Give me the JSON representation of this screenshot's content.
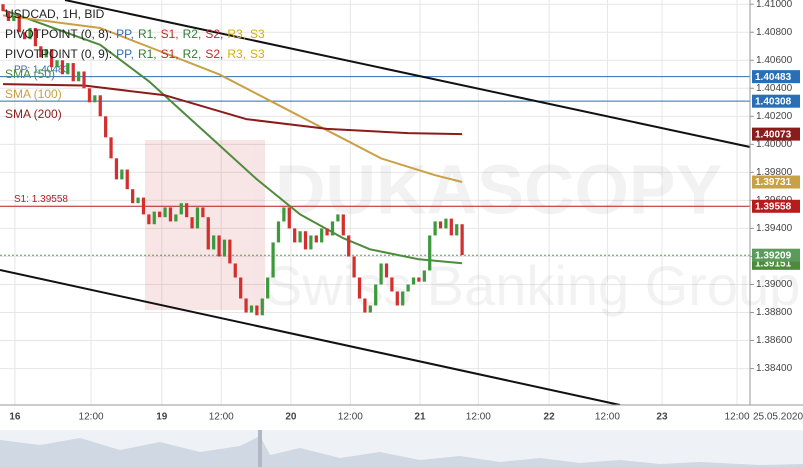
{
  "chart_data": {
    "type": "candlestick",
    "title": "USDCAD, 1H, BID",
    "indicators": [
      {
        "label": "PIVOTPOINT (0, 8):",
        "parts": [
          {
            "text": "PP,",
            "color": "#2a6fb5"
          },
          {
            "text": "R1,",
            "color": "#2e7d32"
          },
          {
            "text": "S1,",
            "color": "#c62828"
          },
          {
            "text": "R2,",
            "color": "#2e7d32"
          },
          {
            "text": "S2,",
            "color": "#c62828"
          },
          {
            "text": "R3,",
            "color": "#d4b000"
          },
          {
            "text": "S3",
            "color": "#d4b000"
          }
        ]
      },
      {
        "label": "PIVOTPOINT (0, 9):",
        "parts": [
          {
            "text": "PP,",
            "color": "#2a6fb5"
          },
          {
            "text": "R1,",
            "color": "#2e7d32"
          },
          {
            "text": "S1,",
            "color": "#c62828"
          },
          {
            "text": "R2,",
            "color": "#2e7d32"
          },
          {
            "text": "S2,",
            "color": "#c62828"
          },
          {
            "text": "R3,",
            "color": "#d4b000"
          },
          {
            "text": "S3",
            "color": "#d4b000"
          }
        ]
      }
    ],
    "watermark": [
      "DUKASCOPY",
      "Swiss Banking Group"
    ],
    "up_color": "#3c9a3c",
    "down_color": "#d32f2f",
    "open": [
      1.41,
      1.4095,
      1.4088,
      1.4092,
      1.408,
      1.4075,
      1.4083,
      1.407,
      1.4062,
      1.4068,
      1.4055,
      1.406,
      1.405,
      1.4058,
      1.4045,
      1.4052,
      1.404,
      1.403,
      1.4035,
      1.402,
      1.4005,
      1.399,
      1.3975,
      1.3982,
      1.3968,
      1.3958,
      1.3962,
      1.395,
      1.3943,
      1.3952,
      1.3948,
      1.3955,
      1.3945,
      1.395,
      1.3958,
      1.3948,
      1.394,
      1.3955,
      1.3948,
      1.3925,
      1.3935,
      1.392,
      1.3932,
      1.3915,
      1.3905,
      1.389,
      1.388,
      1.3885,
      1.3878,
      1.389,
      1.3905,
      1.393,
      1.3945,
      1.3955,
      1.394,
      1.393,
      1.3938,
      1.3925,
      1.3935,
      1.393,
      1.394,
      1.3935,
      1.3945,
      1.395,
      1.3935,
      1.392,
      1.3905,
      1.389,
      1.388,
      1.3885,
      1.39,
      1.3915,
      1.3905,
      1.3895,
      1.3885,
      1.3895,
      1.39,
      1.3905,
      1.3902,
      1.391,
      1.3935,
      1.3945,
      1.394,
      1.3947,
      1.3935,
      1.3943
    ],
    "close": [
      1.4095,
      1.4088,
      1.4092,
      1.408,
      1.4075,
      1.4083,
      1.407,
      1.4062,
      1.4068,
      1.4055,
      1.406,
      1.405,
      1.4058,
      1.4045,
      1.4052,
      1.404,
      1.403,
      1.4035,
      1.402,
      1.4005,
      1.399,
      1.3975,
      1.3982,
      1.3968,
      1.3958,
      1.3962,
      1.395,
      1.3943,
      1.3952,
      1.3948,
      1.3955,
      1.3945,
      1.395,
      1.3958,
      1.3948,
      1.394,
      1.3955,
      1.3948,
      1.3925,
      1.3935,
      1.392,
      1.3932,
      1.3915,
      1.3905,
      1.389,
      1.388,
      1.3885,
      1.3878,
      1.389,
      1.3905,
      1.393,
      1.3945,
      1.3955,
      1.394,
      1.393,
      1.3938,
      1.3925,
      1.3935,
      1.393,
      1.394,
      1.3935,
      1.3945,
      1.395,
      1.3935,
      1.392,
      1.3905,
      1.389,
      1.388,
      1.3885,
      1.39,
      1.3915,
      1.3905,
      1.3895,
      1.3885,
      1.3895,
      1.39,
      1.3905,
      1.3902,
      1.391,
      1.3935,
      1.3945,
      1.394,
      1.3947,
      1.3935,
      1.3943,
      1.3921
    ],
    "series": [
      {
        "name": "SMA (50)",
        "color": "#4e8a3c",
        "x": [
          0,
          18,
          27,
          37,
          47,
          55,
          63,
          68,
          77,
          85
        ],
        "values": [
          1.4096,
          1.4071,
          1.4045,
          1.401,
          1.3975,
          1.395,
          1.3933,
          1.3925,
          1.3918,
          1.39151
        ]
      },
      {
        "name": "SMA (100)",
        "color": "#c9a043",
        "x": [
          0,
          18,
          28,
          40,
          50,
          60,
          70,
          80,
          85
        ],
        "values": [
          1.4092,
          1.4083,
          1.4068,
          1.405,
          1.403,
          1.401,
          1.399,
          1.3978,
          1.39731
        ]
      },
      {
        "name": "SMA (200)",
        "color": "#8b1c1c",
        "x": [
          0,
          15,
          30,
          45,
          60,
          75,
          85
        ],
        "values": [
          1.4043,
          1.4042,
          1.4035,
          1.4018,
          1.4011,
          1.4008,
          1.40073
        ]
      }
    ],
    "price_labels": [
      {
        "value": 1.40483,
        "label": "1.40483",
        "color": "#2a6fb5",
        "line": "solid"
      },
      {
        "value": 1.40308,
        "label": "1.40308",
        "color": "#2a6fb5",
        "line": "solid"
      },
      {
        "value": 1.40073,
        "label": "1.40073",
        "color": "#8b1c1c"
      },
      {
        "value": 1.39731,
        "label": "1.39731",
        "color": "#c9a043"
      },
      {
        "value": 1.39558,
        "label": "1.39558",
        "color": "#b71c1c",
        "line": "solid"
      },
      {
        "value": 1.39151,
        "label": "1.39151",
        "color": "#4e8a3c"
      },
      {
        "value": 1.39209,
        "label": "1.39209",
        "color": "#5a9a5a",
        "line": "dotted"
      }
    ],
    "annotations": [
      {
        "text": "S1: 1.39558",
        "value": 1.39558,
        "color": "#b71c1c"
      },
      {
        "text": "PP: 1.40483",
        "value": 1.40483,
        "color": "#2a6fb5"
      }
    ],
    "xlim": [
      -0.56,
      138.3
    ],
    "xticks": [
      {
        "value": 2.2,
        "label": "16"
      },
      {
        "value": 16.3,
        "label": "12:00"
      },
      {
        "value": 29.4,
        "label": "19"
      },
      {
        "value": 40.4,
        "label": "12:00"
      },
      {
        "value": 53.3,
        "label": "20"
      },
      {
        "value": 64.3,
        "label": "12:00"
      },
      {
        "value": 77.2,
        "label": "21"
      },
      {
        "value": 88,
        "label": "12:00"
      },
      {
        "value": 101.1,
        "label": "22"
      },
      {
        "value": 111.9,
        "label": "12:00"
      },
      {
        "value": 122,
        "label": "23"
      },
      {
        "value": 135.9,
        "label": "12:00"
      }
    ],
    "date": "25.05.2020",
    "ylim": [
      1.3814,
      1.4103
    ],
    "yticks": [
      {
        "value": 1.41,
        "label": "1.41000"
      },
      {
        "value": 1.408,
        "label": "1.40800"
      },
      {
        "value": 1.406,
        "label": "1.40600"
      },
      {
        "value": 1.404,
        "label": "1.40400"
      },
      {
        "value": 1.402,
        "label": "1.40200"
      },
      {
        "value": 1.4,
        "label": "1.40000"
      },
      {
        "value": 1.398,
        "label": "1.39800"
      },
      {
        "value": 1.396,
        "label": "1.39600"
      },
      {
        "value": 1.394,
        "label": "1.39400"
      },
      {
        "value": 1.392,
        "label": "1.39200"
      },
      {
        "value": 1.39,
        "label": "1.39000"
      },
      {
        "value": 1.388,
        "label": "1.38800"
      },
      {
        "value": 1.386,
        "label": "1.38600"
      },
      {
        "value": 1.384,
        "label": "1.38400"
      }
    ],
    "grid": true
  }
}
